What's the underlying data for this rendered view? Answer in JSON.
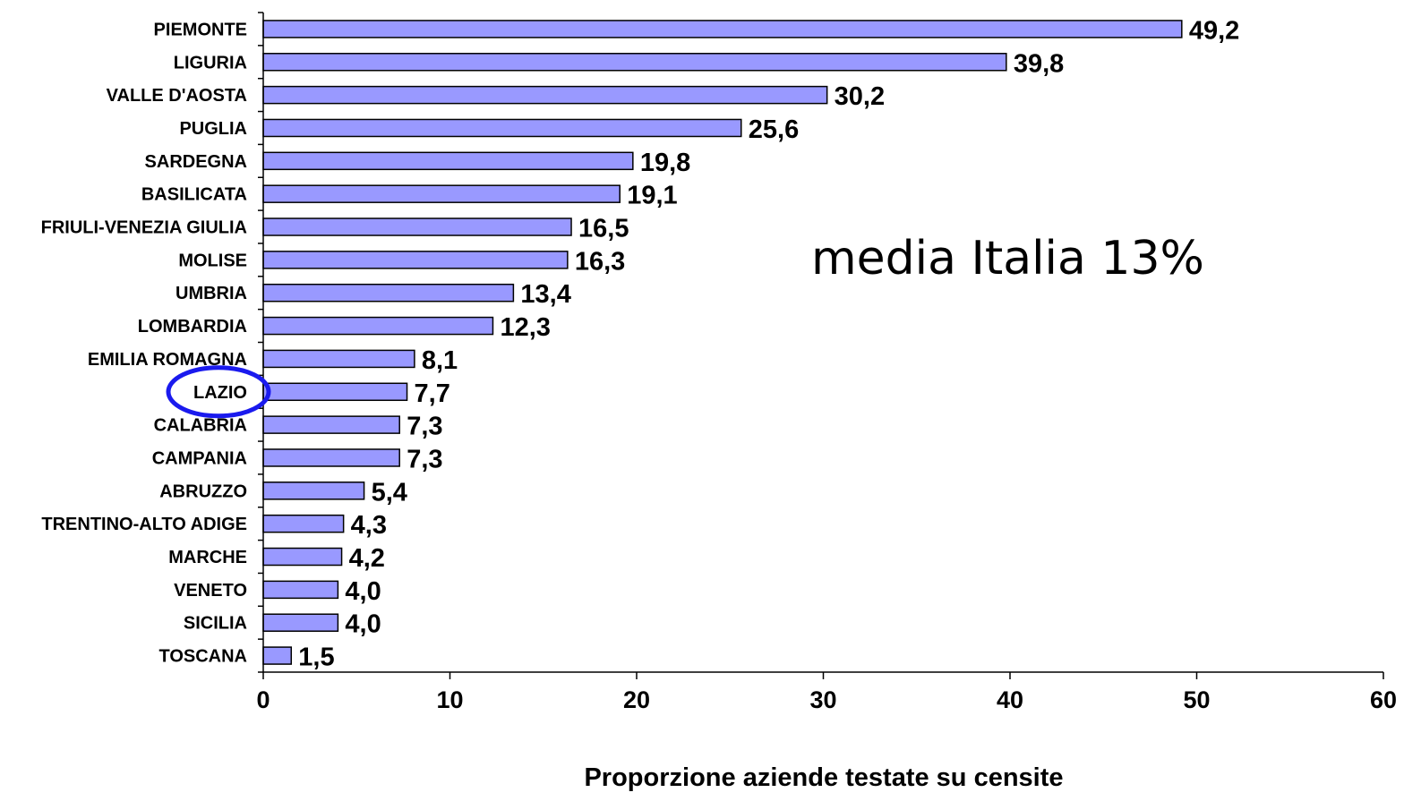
{
  "chart_data": {
    "type": "bar",
    "orientation": "horizontal",
    "categories": [
      "PIEMONTE",
      "LIGURIA",
      "VALLE D'AOSTA",
      "PUGLIA",
      "SARDEGNA",
      "BASILICATA",
      "FRIULI-VENEZIA GIULIA",
      "MOLISE",
      "UMBRIA",
      "LOMBARDIA",
      "EMILIA ROMAGNA",
      "LAZIO",
      "CALABRIA",
      "CAMPANIA",
      "ABRUZZO",
      "TRENTINO-ALTO ADIGE",
      "MARCHE",
      "VENETO",
      "SICILIA",
      "TOSCANA"
    ],
    "values": [
      49.2,
      39.8,
      30.2,
      25.6,
      19.8,
      19.1,
      16.5,
      16.3,
      13.4,
      12.3,
      8.1,
      7.7,
      7.3,
      7.3,
      5.4,
      4.3,
      4.2,
      4.0,
      4.0,
      1.5
    ],
    "value_labels": [
      "49,2",
      "39,8",
      "30,2",
      "25,6",
      "19,8",
      "19,1",
      "16,5",
      "16,3",
      "13,4",
      "12,3",
      "8,1",
      "7,7",
      "7,3",
      "7,3",
      "5,4",
      "4,3",
      "4,2",
      "4,0",
      "4,0",
      "1,5"
    ],
    "xlabel": "Proporzione aziende testate su censite",
    "xlim": [
      0,
      60
    ],
    "xticks": [
      0,
      10,
      20,
      30,
      40,
      50,
      60
    ],
    "grid": false,
    "legend": false,
    "bar_color": "#9999ff",
    "bar_edge_color": "#000000",
    "highlight": {
      "category": "LAZIO",
      "shape": "ellipse",
      "color": "#1a1aee"
    },
    "annotation": "media Italia 13%"
  }
}
